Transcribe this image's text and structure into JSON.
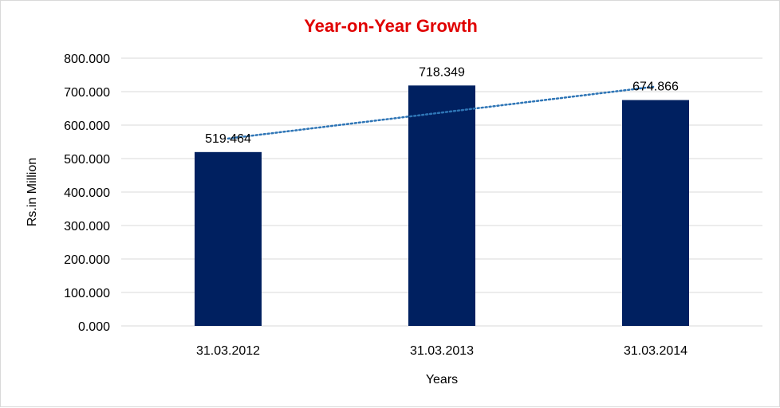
{
  "chart_data": {
    "type": "bar",
    "title": "Year-on-Year Growth",
    "xlabel": "Years",
    "ylabel": "Rs.in Million",
    "categories": [
      "31.03.2012",
      "31.03.2013",
      "31.03.2014"
    ],
    "values": [
      519.464,
      718.349,
      674.866
    ],
    "value_labels": [
      "519.464",
      "718.349",
      "674.866"
    ],
    "ylim": [
      0,
      800
    ],
    "yticks": [
      0,
      100,
      200,
      300,
      400,
      500,
      600,
      700,
      800
    ],
    "ytick_labels": [
      "0.000",
      "100.000",
      "200.000",
      "300.000",
      "400.000",
      "500.000",
      "600.000",
      "700.000",
      "800.000"
    ],
    "grid": true,
    "trendline": {
      "type": "linear",
      "style": "dotted"
    },
    "colors": {
      "bar": "#002060",
      "title": "#e00000",
      "gridline": "#d9d9d9",
      "trendline": "#2e75b6"
    }
  }
}
